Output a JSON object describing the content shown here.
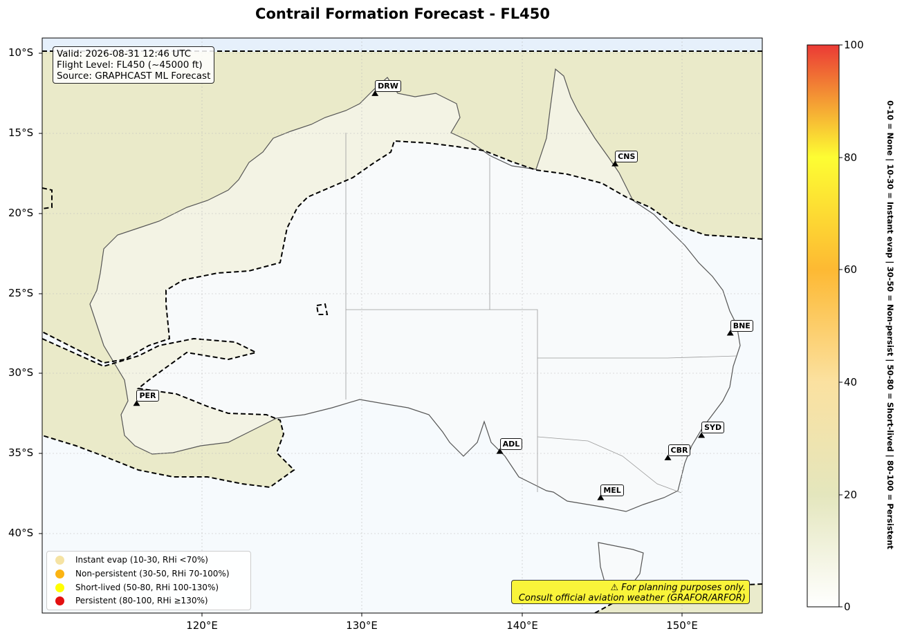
{
  "title": "Contrail Formation Forecast - FL450",
  "info_box": {
    "valid": "Valid: 2026-08-31 12:46 UTC",
    "flight_level": "Flight Level: FL450 (~45000 ft)",
    "source": "Source: GRAPHCAST ML Forecast"
  },
  "lat_ticks": [
    "10°S",
    "15°S",
    "20°S",
    "25°S",
    "30°S",
    "35°S",
    "40°S"
  ],
  "lon_ticks": [
    "120°E",
    "130°E",
    "140°E",
    "150°E"
  ],
  "cities": [
    {
      "code": "DRW",
      "lon": 130.8,
      "lat": -12.5
    },
    {
      "code": "CNS",
      "lon": 145.8,
      "lat": -16.9
    },
    {
      "code": "BNE",
      "lon": 153.0,
      "lat": -27.5
    },
    {
      "code": "PER",
      "lon": 115.9,
      "lat": -31.9
    },
    {
      "code": "SYD",
      "lon": 151.2,
      "lat": -33.9
    },
    {
      "code": "ADL",
      "lon": 138.6,
      "lat": -34.9
    },
    {
      "code": "CBR",
      "lon": 149.1,
      "lat": -35.3
    },
    {
      "code": "MEL",
      "lon": 144.9,
      "lat": -37.8
    }
  ],
  "legend": [
    {
      "label": "Instant evap (10-30, RHi <70%)",
      "color": "#f5e3a3"
    },
    {
      "label": "Non-persistent (30-50, RHi 70-100%)",
      "color": "#fbb413"
    },
    {
      "label": "Short-lived (50-80, RHi 100-130%)",
      "color": "#ffff00"
    },
    {
      "label": "Persistent (80-100, RHi ≥130%)",
      "color": "#e31010"
    }
  ],
  "warning": {
    "line1": "⚠ For planning purposes only.",
    "line2": "Consult official aviation weather (GRAFOR/ARFOR)"
  },
  "colorbar": {
    "ticks": [
      "0",
      "20",
      "40",
      "60",
      "80",
      "100"
    ],
    "label": "0-10 = None  |  10-30 = Instant evap  |  30-50 = Non-persist  |  50-80 = Short-lived  |  80-100 = Persistent"
  },
  "map_extent": {
    "lon_min": 110,
    "lon_max": 155,
    "lat_min": -45,
    "lat_max": -9
  }
}
